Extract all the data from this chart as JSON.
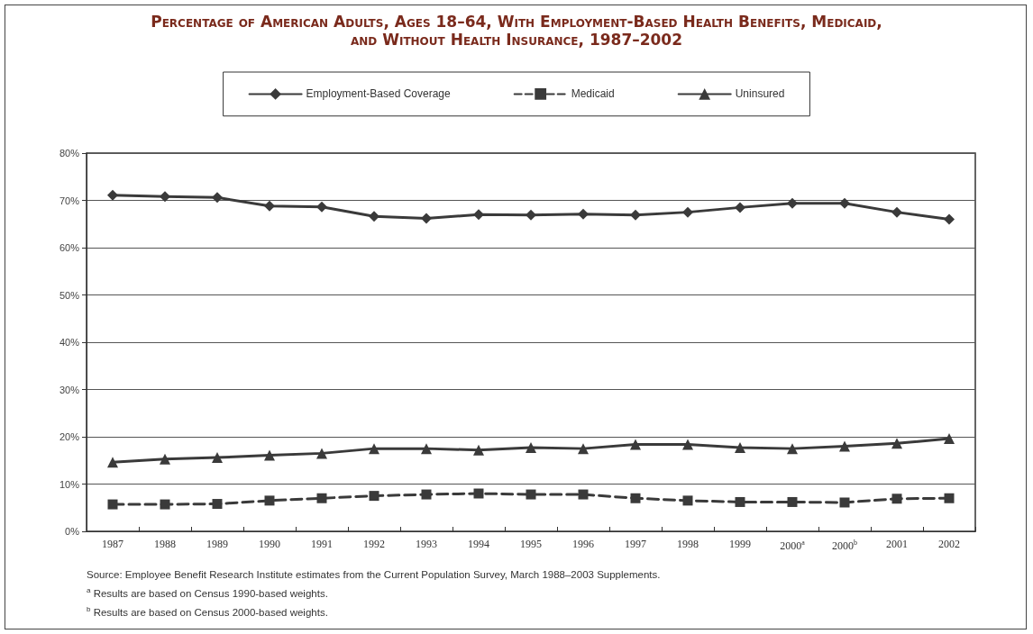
{
  "chart_data": {
    "type": "line",
    "title": "Percentage of American Adults, Ages 18–64, With Employment-Based Health Benefits, Medicaid, and Without Health Insurance, 1987–2002",
    "categories": [
      "1987",
      "1988",
      "1989",
      "1990",
      "1991",
      "1992",
      "1993",
      "1994",
      "1995",
      "1996",
      "1997",
      "1998",
      "1999",
      "2000$^{a}$",
      "2000$^{b}$",
      "2001",
      "2002"
    ],
    "series": [
      {
        "name": "Employment-Based Coverage",
        "color": "#3a3a3a",
        "marker": "diamond",
        "line_style": "solid",
        "values": [
          71.1,
          70.8,
          70.6,
          68.8,
          68.6,
          66.6,
          66.2,
          67.0,
          66.9,
          67.1,
          66.9,
          67.5,
          68.5,
          69.4,
          69.4,
          67.5,
          66.0
        ]
      },
      {
        "name": "Medicaid",
        "color": "#3a3a3a",
        "marker": "square",
        "line_style": "dashed",
        "values": [
          5.7,
          5.7,
          5.8,
          6.5,
          7.0,
          7.5,
          7.8,
          8.0,
          7.8,
          7.8,
          7.0,
          6.5,
          6.2,
          6.2,
          6.1,
          6.9,
          7.0
        ]
      },
      {
        "name": "Uninsured",
        "color": "#3a3a3a",
        "marker": "triangle",
        "line_style": "solid",
        "values": [
          14.6,
          15.3,
          15.6,
          16.1,
          16.5,
          17.5,
          17.5,
          17.2,
          17.7,
          17.5,
          18.4,
          18.4,
          17.7,
          17.5,
          18.0,
          18.6,
          19.6
        ]
      }
    ],
    "ylim": [
      0,
      80
    ],
    "yticks": [
      {
        "value": 0,
        "label": "0%"
      },
      {
        "value": 10,
        "label": "10%"
      },
      {
        "value": 20,
        "label": "20%"
      },
      {
        "value": 30,
        "label": "30%"
      },
      {
        "value": 40,
        "label": "40%"
      },
      {
        "value": 50,
        "label": "50%"
      },
      {
        "value": 60,
        "label": "60%"
      },
      {
        "value": 70,
        "label": "70%"
      },
      {
        "value": 80,
        "label": "80%"
      }
    ],
    "grid": "y",
    "legend": "top",
    "annotations": [
      "Source: Employee Benefit Research Institute estimates from the Current Population Survey, March 1988–2003 Supplements.",
      "$^{a}$ Results are based on Census 1990-based weights.",
      "$^{b}$ Results are based on Census 2000-based weights."
    ]
  }
}
